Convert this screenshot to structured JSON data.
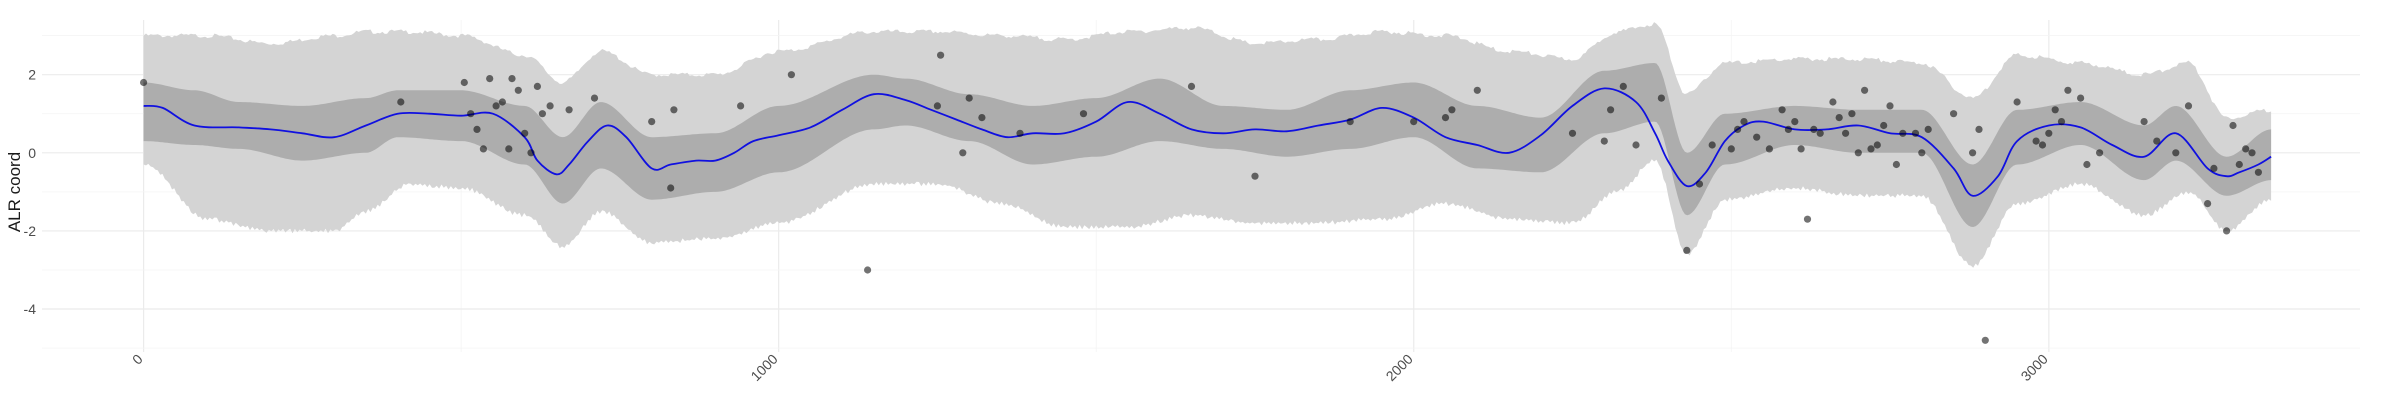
{
  "chart_data": {
    "type": "line",
    "title": "",
    "xlabel": "",
    "ylabel": "ALR coord",
    "xlim": [
      -160,
      3490
    ],
    "ylim": [
      -5.1,
      3.4
    ],
    "x_ticks": [
      0,
      1000,
      2000,
      3000
    ],
    "x_tick_labels": [
      "0",
      "1000",
      "2000",
      "3000"
    ],
    "y_ticks": [
      -4,
      -2,
      0,
      2
    ],
    "y_tick_labels": [
      "-4",
      "-2",
      "0",
      "2"
    ],
    "grid": true,
    "legend": "none",
    "colors": {
      "mean_line": "#1010e0",
      "inner_band": "#adadad",
      "outer_band": "#d4d4d4",
      "points": "#000000",
      "grid": "#ebebeb"
    },
    "mean": {
      "x": [
        0,
        30,
        80,
        150,
        200,
        250,
        300,
        350,
        400,
        450,
        500,
        550,
        600,
        620,
        650,
        670,
        700,
        730,
        760,
        800,
        830,
        870,
        900,
        930,
        960,
        1000,
        1050,
        1100,
        1150,
        1200,
        1240,
        1280,
        1320,
        1360,
        1400,
        1450,
        1500,
        1550,
        1600,
        1650,
        1700,
        1750,
        1800,
        1850,
        1900,
        1950,
        2000,
        2050,
        2100,
        2150,
        2200,
        2250,
        2300,
        2350,
        2380,
        2400,
        2430,
        2460,
        2490,
        2520,
        2550,
        2600,
        2650,
        2700,
        2750,
        2800,
        2850,
        2880,
        2920,
        2950,
        3000,
        3050,
        3100,
        3150,
        3200,
        3250,
        3280,
        3300,
        3330,
        3350
      ],
      "y": [
        1.2,
        1.15,
        0.7,
        0.65,
        0.6,
        0.5,
        0.4,
        0.7,
        1.0,
        1.0,
        0.95,
        1.0,
        0.4,
        -0.2,
        -0.55,
        -0.3,
        0.3,
        0.7,
        0.4,
        -0.4,
        -0.3,
        -0.2,
        -0.2,
        0.0,
        0.3,
        0.45,
        0.65,
        1.1,
        1.5,
        1.35,
        1.1,
        0.85,
        0.6,
        0.4,
        0.5,
        0.5,
        0.8,
        1.3,
        1.0,
        0.6,
        0.5,
        0.6,
        0.55,
        0.7,
        0.85,
        1.15,
        0.9,
        0.4,
        0.2,
        0.0,
        0.45,
        1.2,
        1.65,
        1.3,
        0.5,
        -0.2,
        -0.85,
        -0.5,
        0.3,
        0.7,
        0.8,
        0.6,
        0.6,
        0.7,
        0.5,
        0.4,
        -0.4,
        -1.1,
        -0.6,
        0.3,
        0.7,
        0.65,
        0.2,
        -0.1,
        0.5,
        -0.4,
        -0.6,
        -0.5,
        -0.3,
        -0.1
      ]
    },
    "inner_band": {
      "x": [
        0,
        80,
        150,
        250,
        350,
        400,
        500,
        600,
        660,
        720,
        800,
        900,
        1000,
        1150,
        1200,
        1300,
        1400,
        1500,
        1600,
        1700,
        1800,
        1900,
        2000,
        2100,
        2200,
        2300,
        2380,
        2430,
        2490,
        2600,
        2700,
        2800,
        2880,
        2950,
        3050,
        3150,
        3200,
        3280,
        3350
      ],
      "lower": [
        0.3,
        0.2,
        0.1,
        -0.2,
        0.0,
        0.4,
        0.3,
        -0.3,
        -1.3,
        -0.4,
        -1.2,
        -1.0,
        -0.5,
        0.6,
        0.7,
        0.3,
        -0.3,
        -0.1,
        0.3,
        0.1,
        -0.1,
        0.1,
        0.4,
        -0.4,
        -0.5,
        0.5,
        0.8,
        -1.6,
        -0.3,
        0.2,
        0.0,
        0.0,
        -1.9,
        -0.3,
        0.2,
        -0.7,
        -0.2,
        -1.1,
        -0.7
      ],
      "upper": [
        1.8,
        1.6,
        1.3,
        1.2,
        1.4,
        1.6,
        1.6,
        1.2,
        0.4,
        1.3,
        0.4,
        0.5,
        1.2,
        2.0,
        1.9,
        1.5,
        1.2,
        1.4,
        1.9,
        1.2,
        1.1,
        1.6,
        1.8,
        1.2,
        0.9,
        2.1,
        2.3,
        0.0,
        1.0,
        1.2,
        1.1,
        1.1,
        -0.3,
        1.1,
        1.3,
        0.7,
        1.2,
        -0.1,
        0.6
      ]
    },
    "outer_band": {
      "x": [
        0,
        100,
        200,
        300,
        350,
        420,
        500,
        600,
        660,
        720,
        800,
        900,
        1000,
        1150,
        1250,
        1350,
        1450,
        1550,
        1650,
        1750,
        1850,
        1950,
        2050,
        2150,
        2250,
        2320,
        2380,
        2430,
        2490,
        2600,
        2700,
        2800,
        2880,
        2950,
        3050,
        3150,
        3220,
        3280,
        3350
      ],
      "lower": [
        -0.3,
        -1.7,
        -2.0,
        -2.0,
        -1.5,
        -0.8,
        -0.9,
        -1.6,
        -2.4,
        -1.5,
        -2.3,
        -2.2,
        -1.8,
        -0.8,
        -0.8,
        -1.3,
        -1.9,
        -1.9,
        -1.6,
        -1.8,
        -1.8,
        -1.7,
        -1.3,
        -1.7,
        -1.8,
        -1.0,
        -0.2,
        -2.6,
        -1.2,
        -0.9,
        -1.1,
        -1.1,
        -2.9,
        -1.3,
        -0.8,
        -1.6,
        -1.0,
        -2.0,
        -1.2
      ],
      "upper": [
        3.0,
        3.0,
        2.8,
        3.0,
        3.1,
        3.1,
        3.0,
        2.5,
        1.8,
        2.6,
        2.0,
        2.0,
        2.6,
        3.1,
        3.1,
        3.0,
        2.9,
        3.1,
        3.2,
        2.8,
        2.9,
        3.1,
        3.0,
        2.6,
        2.4,
        3.1,
        3.3,
        1.5,
        2.3,
        2.4,
        2.4,
        2.3,
        1.4,
        2.5,
        2.3,
        2.0,
        2.3,
        0.9,
        1.1
      ]
    },
    "points": {
      "x": [
        0,
        405,
        505,
        515,
        525,
        535,
        545,
        555,
        565,
        575,
        580,
        590,
        600,
        610,
        620,
        628,
        640,
        670,
        710,
        800,
        830,
        835,
        940,
        1020,
        1140,
        1250,
        1255,
        1290,
        1300,
        1320,
        1380,
        1480,
        1650,
        1750,
        1900,
        2000,
        2050,
        2060,
        2100,
        2250,
        2300,
        2310,
        2330,
        2350,
        2390,
        2430,
        2450,
        2470,
        2500,
        2510,
        2520,
        2540,
        2560,
        2580,
        2590,
        2600,
        2610,
        2620,
        2630,
        2640,
        2660,
        2670,
        2680,
        2690,
        2700,
        2710,
        2720,
        2730,
        2740,
        2750,
        2760,
        2770,
        2790,
        2800,
        2810,
        2850,
        2880,
        2890,
        2900,
        2950,
        2980,
        2990,
        3000,
        3010,
        3020,
        3030,
        3050,
        3060,
        3080,
        3150,
        3170,
        3200,
        3220,
        3250,
        3260,
        3280,
        3290,
        3300,
        3310,
        3320,
        3330
      ],
      "y": [
        1.8,
        1.3,
        1.8,
        1.0,
        0.6,
        0.1,
        1.9,
        1.2,
        1.3,
        0.1,
        1.9,
        1.6,
        0.5,
        0.0,
        1.7,
        1.0,
        1.2,
        1.1,
        1.4,
        0.8,
        -0.9,
        1.1,
        1.2,
        2.0,
        -3.0,
        1.2,
        2.5,
        0.0,
        1.4,
        0.9,
        0.5,
        1.0,
        1.7,
        -0.6,
        0.8,
        0.8,
        0.9,
        1.1,
        1.6,
        0.5,
        0.3,
        1.1,
        1.7,
        0.2,
        1.4,
        -2.5,
        -0.8,
        0.2,
        0.1,
        0.6,
        0.8,
        0.4,
        0.1,
        1.1,
        0.6,
        0.8,
        0.1,
        -1.7,
        0.6,
        0.5,
        1.3,
        0.9,
        0.5,
        1.0,
        0.0,
        1.6,
        0.1,
        0.2,
        0.7,
        1.2,
        -0.3,
        0.5,
        0.5,
        0.0,
        0.6,
        1.0,
        0.0,
        0.6,
        -4.8,
        1.3,
        0.3,
        0.2,
        0.5,
        1.1,
        0.8,
        1.6,
        1.4,
        -0.3,
        0.0,
        0.8,
        0.3,
        0.0,
        1.2,
        -1.3,
        -0.4,
        -2.0,
        0.7,
        -0.3,
        0.1,
        0.0,
        -0.5
      ]
    }
  }
}
